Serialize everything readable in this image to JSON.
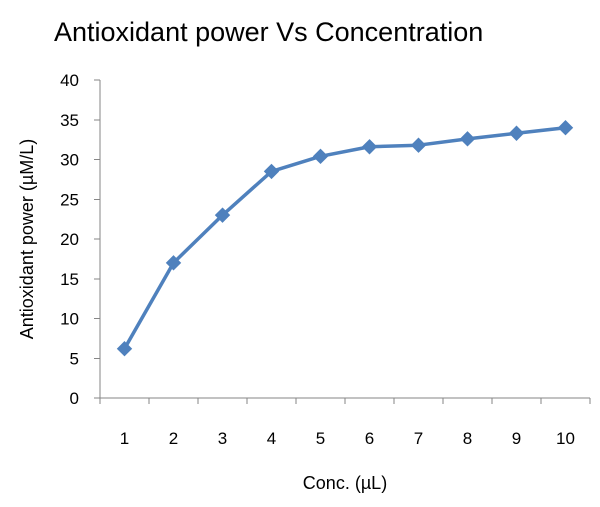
{
  "chart_data": {
    "type": "line",
    "title": "Antioxidant power Vs Concentration",
    "xlabel": "Conc. (µL)",
    "ylabel": "Antioxidant power (µM/L)",
    "categories": [
      "1",
      "2",
      "3",
      "4",
      "5",
      "6",
      "7",
      "8",
      "9",
      "10"
    ],
    "series": [
      {
        "values": [
          6.2,
          17.0,
          23.0,
          28.5,
          30.4,
          31.6,
          31.8,
          32.6,
          33.3,
          34.0
        ],
        "color": "#4f81bd"
      }
    ],
    "ylim": [
      0,
      40
    ],
    "yticks": [
      "0",
      "5",
      "10",
      "15",
      "20",
      "25",
      "30",
      "35",
      "40"
    ],
    "grid": false,
    "legend": "none",
    "marker": "diamond"
  }
}
